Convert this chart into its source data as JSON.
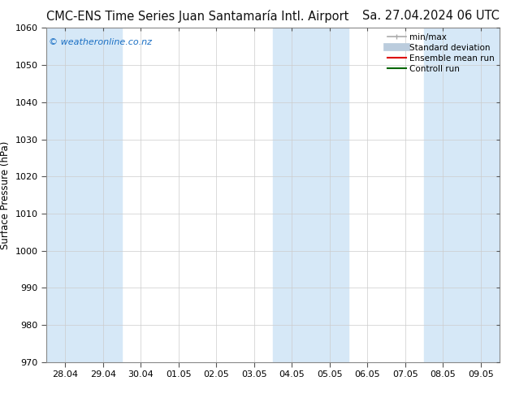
{
  "title_left": "CMC-ENS Time Series Juan Santamaría Intl. Airport",
  "title_right": "Sa. 27.04.2024 06 UTC",
  "ylabel": "Surface Pressure (hPa)",
  "watermark": "© weatheronline.co.nz",
  "ylim": [
    970,
    1060
  ],
  "yticks": [
    970,
    980,
    990,
    1000,
    1010,
    1020,
    1030,
    1040,
    1050,
    1060
  ],
  "xtick_labels": [
    "28.04",
    "29.04",
    "30.04",
    "01.05",
    "02.05",
    "03.05",
    "04.05",
    "05.05",
    "06.05",
    "07.05",
    "08.05",
    "09.05"
  ],
  "shaded_ranges": [
    [
      0,
      1
    ],
    [
      6,
      7
    ],
    [
      10,
      11
    ]
  ],
  "shaded_color": "#d6e8f7",
  "bg_color": "#ffffff",
  "legend_entries": [
    {
      "label": "min/max",
      "color": "#aaaaaa",
      "lw": 1.2,
      "ls": "-",
      "style": "minmax"
    },
    {
      "label": "Standard deviation",
      "color": "#bbccdd",
      "lw": 7,
      "ls": "-",
      "style": "band"
    },
    {
      "label": "Ensemble mean run",
      "color": "#dd0000",
      "lw": 1.5,
      "ls": "-",
      "style": "line"
    },
    {
      "label": "Controll run",
      "color": "#006600",
      "lw": 1.5,
      "ls": "-",
      "style": "line"
    }
  ],
  "watermark_color": "#1a6fc4",
  "title_fontsize": 10.5,
  "axis_label_fontsize": 8.5,
  "tick_fontsize": 8,
  "legend_fontsize": 7.5
}
